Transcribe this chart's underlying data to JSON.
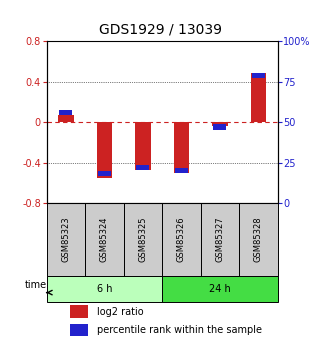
{
  "title": "GDS1929 / 13039",
  "samples": [
    "GSM85323",
    "GSM85324",
    "GSM85325",
    "GSM85326",
    "GSM85327",
    "GSM85328"
  ],
  "log2_ratio": [
    0.07,
    -0.55,
    -0.47,
    -0.5,
    -0.04,
    0.49
  ],
  "percentile_rank": [
    56,
    18,
    22,
    20,
    47,
    79
  ],
  "groups": [
    {
      "label": "6 h",
      "indices": [
        0,
        1,
        2
      ],
      "color": "#bbffbb"
    },
    {
      "label": "24 h",
      "indices": [
        3,
        4,
        5
      ],
      "color": "#44dd44"
    }
  ],
  "ylim": [
    -0.8,
    0.8
  ],
  "yticks_left": [
    -0.8,
    -0.4,
    0.0,
    0.4,
    0.8
  ],
  "yticks_right": [
    0,
    25,
    50,
    75,
    100
  ],
  "bar_color_red": "#cc2222",
  "bar_color_blue": "#2222cc",
  "bg_color": "#ffffff",
  "plot_bg": "#ffffff",
  "sample_bg": "#cccccc",
  "title_fontsize": 10,
  "tick_fontsize": 7,
  "label_fontsize": 6,
  "legend_fontsize": 7,
  "bar_width": 0.4,
  "blue_bar_height": 0.05
}
